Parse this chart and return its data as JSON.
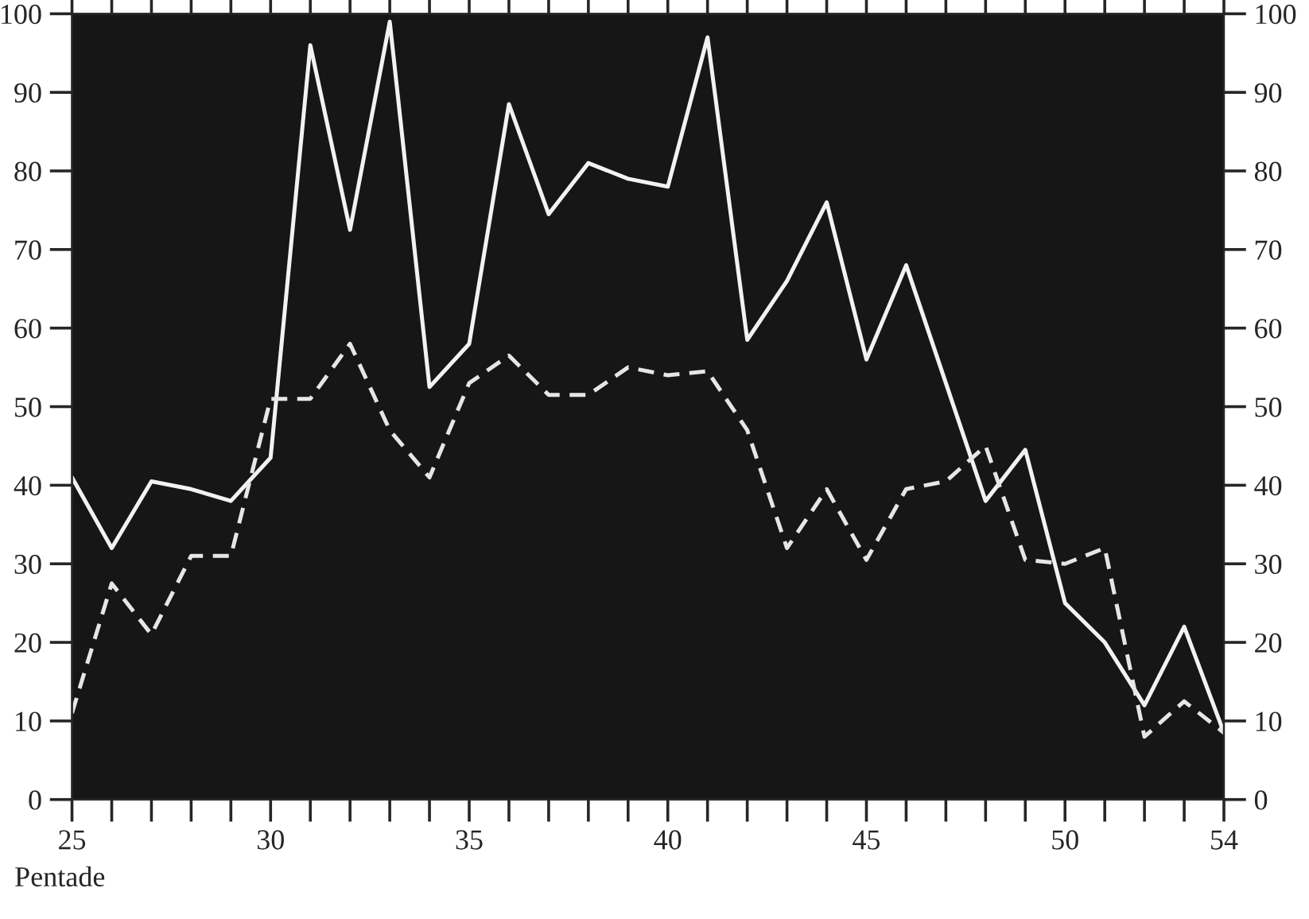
{
  "chart_data": {
    "type": "line",
    "xlabel": "Pentade",
    "x": [
      25,
      26,
      27,
      28,
      29,
      30,
      31,
      32,
      33,
      34,
      35,
      36,
      37,
      38,
      39,
      40,
      41,
      42,
      43,
      44,
      45,
      46,
      47,
      48,
      49,
      50,
      51,
      52,
      53,
      54
    ],
    "series": [
      {
        "color": "#f2f2f2",
        "line_style": "solid",
        "values": [
          41,
          32,
          40.5,
          39.5,
          38,
          43.5,
          96,
          72.5,
          99,
          52.5,
          58,
          88.5,
          74.5,
          81,
          79,
          78,
          97,
          58.5,
          66,
          76,
          56,
          68,
          53,
          38,
          44.5,
          25,
          20,
          12,
          22,
          8.5
        ]
      },
      {
        "color": "#e6e6e6",
        "line_style": "dashed",
        "values": [
          11,
          27.5,
          21,
          31,
          31,
          51,
          51,
          58,
          47,
          41,
          53,
          56.5,
          51.5,
          51.5,
          55,
          54,
          54.5,
          47,
          32,
          39.5,
          30.5,
          39.5,
          40.5,
          45,
          30.5,
          30,
          32,
          8,
          12.5,
          8.5
        ]
      }
    ],
    "xlim": [
      25,
      54
    ],
    "xticks": [
      25,
      {
        "value": 26,
        "label": null
      },
      {
        "value": 27,
        "label": null
      },
      {
        "value": 28,
        "label": null
      },
      {
        "value": 29,
        "label": null
      },
      30,
      {
        "value": 31,
        "label": null
      },
      {
        "value": 32,
        "label": null
      },
      {
        "value": 33,
        "label": null
      },
      {
        "value": 34,
        "label": null
      },
      35,
      {
        "value": 36,
        "label": null
      },
      {
        "value": 37,
        "label": null
      },
      {
        "value": 38,
        "label": null
      },
      {
        "value": 39,
        "label": null
      },
      40,
      {
        "value": 41,
        "label": null
      },
      {
        "value": 42,
        "label": null
      },
      {
        "value": 43,
        "label": null
      },
      {
        "value": 44,
        "label": null
      },
      45,
      {
        "value": 46,
        "label": null
      },
      {
        "value": 47,
        "label": null
      },
      {
        "value": 48,
        "label": null
      },
      {
        "value": 49,
        "label": null
      },
      50,
      {
        "value": 51,
        "label": null
      },
      {
        "value": 52,
        "label": null
      },
      {
        "value": 53,
        "label": null
      },
      54
    ],
    "ylim": [
      0,
      100
    ],
    "yticks": [
      0,
      10,
      20,
      30,
      40,
      50,
      60,
      70,
      80,
      90,
      100
    ],
    "y2lim": [
      0,
      100
    ],
    "y2ticks": [
      0,
      10,
      20,
      30,
      40,
      50,
      60,
      70,
      80,
      90,
      100
    ],
    "grid": false,
    "legend": false,
    "marker": "none"
  }
}
